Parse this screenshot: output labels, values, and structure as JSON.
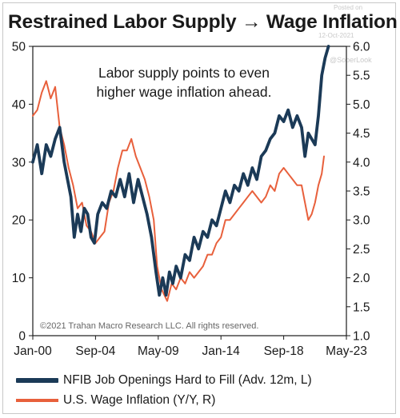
{
  "header": {
    "title": "Restrained Labor Supply → Wage Inflation",
    "posted_on": "Posted on",
    "posted_date": "12-Oct-2021",
    "handle": "@SoberLook"
  },
  "annotation": [
    "Labor supply points to even",
    "higher wage inflation ahead."
  ],
  "copyright": "©2021 Trahan Macro Research LLC. All rights reserved.",
  "colors": {
    "series_a": "#1b3a57",
    "series_b": "#e8603c",
    "axis": "#1a1a1a"
  },
  "chart_data": {
    "type": "line",
    "title": "Restrained Labor Supply → Wage Inflation",
    "x_type": "date",
    "xlim": [
      "2000-01",
      "2023-05"
    ],
    "x_tick_labels": [
      "Jan-00",
      "Sep-04",
      "May-09",
      "Jan-14",
      "Sep-18",
      "May-23"
    ],
    "x_ticks": [
      "2000-01",
      "2004-09",
      "2009-05",
      "2014-01",
      "2018-09",
      "2023-05"
    ],
    "ylim_left": [
      0,
      50
    ],
    "y_ticks_left": [
      "0",
      "10",
      "20",
      "30",
      "40",
      "50"
    ],
    "ylim_right": [
      1.0,
      6.0
    ],
    "y_ticks_right": [
      "1.0",
      "1.5",
      "2.0",
      "2.5",
      "3.0",
      "3.5",
      "4.0",
      "4.5",
      "5.0",
      "5.5",
      "6.0"
    ],
    "grid": false,
    "legend_position": "bottom",
    "series": [
      {
        "name": "NFIB Job Openings Hard to Fill (Adv. 12m, L)",
        "axis": "left",
        "points": [
          [
            "2000-01",
            30
          ],
          [
            "2000-05",
            33
          ],
          [
            "2000-09",
            28
          ],
          [
            "2001-01",
            33
          ],
          [
            "2001-05",
            31
          ],
          [
            "2001-09",
            34
          ],
          [
            "2002-01",
            36
          ],
          [
            "2002-05",
            30
          ],
          [
            "2002-08",
            27
          ],
          [
            "2002-11",
            24
          ],
          [
            "2003-02",
            17
          ],
          [
            "2003-05",
            21
          ],
          [
            "2003-08",
            18
          ],
          [
            "2003-11",
            22
          ],
          [
            "2004-02",
            21
          ],
          [
            "2004-05",
            17
          ],
          [
            "2004-08",
            16
          ],
          [
            "2004-11",
            21
          ],
          [
            "2005-03",
            23
          ],
          [
            "2005-07",
            22
          ],
          [
            "2005-11",
            25
          ],
          [
            "2006-03",
            24
          ],
          [
            "2006-07",
            27
          ],
          [
            "2006-11",
            24
          ],
          [
            "2007-03",
            28
          ],
          [
            "2007-07",
            23
          ],
          [
            "2007-11",
            27
          ],
          [
            "2008-03",
            24
          ],
          [
            "2008-07",
            21
          ],
          [
            "2008-11",
            17
          ],
          [
            "2009-03",
            11
          ],
          [
            "2009-06",
            7
          ],
          [
            "2009-09",
            10
          ],
          [
            "2009-12",
            7
          ],
          [
            "2010-03",
            11
          ],
          [
            "2010-06",
            9
          ],
          [
            "2010-09",
            12
          ],
          [
            "2011-01",
            10
          ],
          [
            "2011-05",
            14
          ],
          [
            "2011-09",
            13
          ],
          [
            "2012-01",
            17
          ],
          [
            "2012-05",
            15
          ],
          [
            "2012-09",
            18
          ],
          [
            "2013-01",
            17
          ],
          [
            "2013-05",
            20
          ],
          [
            "2013-09",
            19
          ],
          [
            "2014-01",
            22
          ],
          [
            "2014-05",
            25
          ],
          [
            "2014-09",
            23
          ],
          [
            "2015-01",
            26
          ],
          [
            "2015-05",
            25
          ],
          [
            "2015-09",
            28
          ],
          [
            "2016-01",
            26
          ],
          [
            "2016-05",
            29
          ],
          [
            "2016-09",
            27
          ],
          [
            "2017-01",
            31
          ],
          [
            "2017-05",
            32
          ],
          [
            "2017-09",
            34
          ],
          [
            "2018-01",
            35
          ],
          [
            "2018-05",
            38
          ],
          [
            "2018-09",
            37
          ],
          [
            "2019-01",
            39
          ],
          [
            "2019-05",
            36
          ],
          [
            "2019-09",
            38
          ],
          [
            "2020-01",
            36
          ],
          [
            "2020-04",
            31
          ],
          [
            "2020-07",
            35
          ],
          [
            "2020-10",
            34
          ],
          [
            "2021-01",
            33
          ],
          [
            "2021-04",
            38
          ],
          [
            "2021-07",
            45
          ],
          [
            "2021-10",
            48
          ],
          [
            "2022-01",
            50
          ]
        ]
      },
      {
        "name": "U.S. Wage Inflation (Y/Y, R)",
        "axis": "right",
        "points": [
          [
            "2000-01",
            4.8
          ],
          [
            "2000-05",
            4.9
          ],
          [
            "2000-09",
            5.2
          ],
          [
            "2001-01",
            5.4
          ],
          [
            "2001-05",
            5.1
          ],
          [
            "2001-09",
            5.3
          ],
          [
            "2002-01",
            4.6
          ],
          [
            "2002-05",
            4.3
          ],
          [
            "2002-09",
            3.9
          ],
          [
            "2003-01",
            3.6
          ],
          [
            "2003-05",
            3.2
          ],
          [
            "2003-09",
            3.3
          ],
          [
            "2004-01",
            2.9
          ],
          [
            "2004-05",
            2.8
          ],
          [
            "2004-09",
            2.6
          ],
          [
            "2005-01",
            2.7
          ],
          [
            "2005-05",
            2.8
          ],
          [
            "2005-09",
            3.3
          ],
          [
            "2006-01",
            3.5
          ],
          [
            "2006-05",
            3.9
          ],
          [
            "2006-09",
            4.2
          ],
          [
            "2007-01",
            4.2
          ],
          [
            "2007-05",
            4.4
          ],
          [
            "2007-09",
            4.1
          ],
          [
            "2008-01",
            3.9
          ],
          [
            "2008-05",
            3.7
          ],
          [
            "2008-09",
            3.4
          ],
          [
            "2009-01",
            3.0
          ],
          [
            "2009-04",
            2.2
          ],
          [
            "2009-08",
            1.8
          ],
          [
            "2010-01",
            1.6
          ],
          [
            "2010-05",
            1.9
          ],
          [
            "2010-09",
            1.8
          ],
          [
            "2011-01",
            2.0
          ],
          [
            "2011-05",
            1.9
          ],
          [
            "2011-09",
            2.1
          ],
          [
            "2012-01",
            2.0
          ],
          [
            "2012-05",
            2.1
          ],
          [
            "2012-09",
            2.2
          ],
          [
            "2013-01",
            2.4
          ],
          [
            "2013-05",
            2.4
          ],
          [
            "2013-09",
            2.6
          ],
          [
            "2014-01",
            2.7
          ],
          [
            "2014-05",
            3.0
          ],
          [
            "2014-09",
            3.0
          ],
          [
            "2015-01",
            3.1
          ],
          [
            "2015-05",
            3.2
          ],
          [
            "2015-09",
            3.3
          ],
          [
            "2016-01",
            3.4
          ],
          [
            "2016-05",
            3.5
          ],
          [
            "2016-09",
            3.4
          ],
          [
            "2017-01",
            3.3
          ],
          [
            "2017-05",
            3.4
          ],
          [
            "2017-09",
            3.6
          ],
          [
            "2018-01",
            3.5
          ],
          [
            "2018-05",
            3.8
          ],
          [
            "2018-09",
            3.9
          ],
          [
            "2019-01",
            3.8
          ],
          [
            "2019-05",
            3.7
          ],
          [
            "2019-09",
            3.6
          ],
          [
            "2020-01",
            3.6
          ],
          [
            "2020-04",
            3.3
          ],
          [
            "2020-07",
            3.0
          ],
          [
            "2020-10",
            3.1
          ],
          [
            "2021-01",
            3.3
          ],
          [
            "2021-04",
            3.6
          ],
          [
            "2021-07",
            3.8
          ],
          [
            "2021-09",
            4.1
          ]
        ]
      }
    ]
  }
}
